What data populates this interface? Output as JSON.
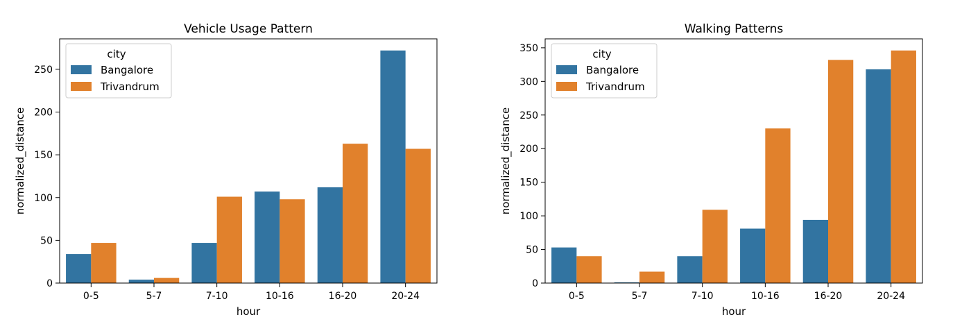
{
  "colors": {
    "Bangalore": "#3274a1",
    "Trivandrum": "#e1812c"
  },
  "chart_data": [
    {
      "type": "bar",
      "title": "Vehicle Usage Pattern",
      "xlabel": "hour",
      "ylabel": "normalized_distance",
      "categories": [
        "0-5",
        "5-7",
        "7-10",
        "10-16",
        "16-20",
        "20-24"
      ],
      "series": [
        {
          "name": "Bangalore",
          "values": [
            34,
            4,
            47,
            107,
            112,
            272
          ]
        },
        {
          "name": "Trivandrum",
          "values": [
            47,
            6,
            101,
            98,
            163,
            157
          ]
        }
      ],
      "yticks": [
        0,
        50,
        100,
        150,
        200,
        250
      ],
      "ylim": [
        0,
        285.6
      ],
      "legend": {
        "title": "city",
        "position": "top-left"
      },
      "grid": false
    },
    {
      "type": "bar",
      "title": "Walking Patterns",
      "xlabel": "hour",
      "ylabel": "normalized_distance",
      "categories": [
        "0-5",
        "5-7",
        "7-10",
        "10-16",
        "16-20",
        "20-24"
      ],
      "series": [
        {
          "name": "Bangalore",
          "values": [
            53,
            1,
            40,
            81,
            94,
            318
          ]
        },
        {
          "name": "Trivandrum",
          "values": [
            40,
            17,
            109,
            230,
            332,
            346
          ]
        }
      ],
      "yticks": [
        0,
        50,
        100,
        150,
        200,
        250,
        300,
        350
      ],
      "ylim": [
        0,
        363.3
      ],
      "legend": {
        "title": "city",
        "position": "top-left"
      },
      "grid": false
    }
  ]
}
